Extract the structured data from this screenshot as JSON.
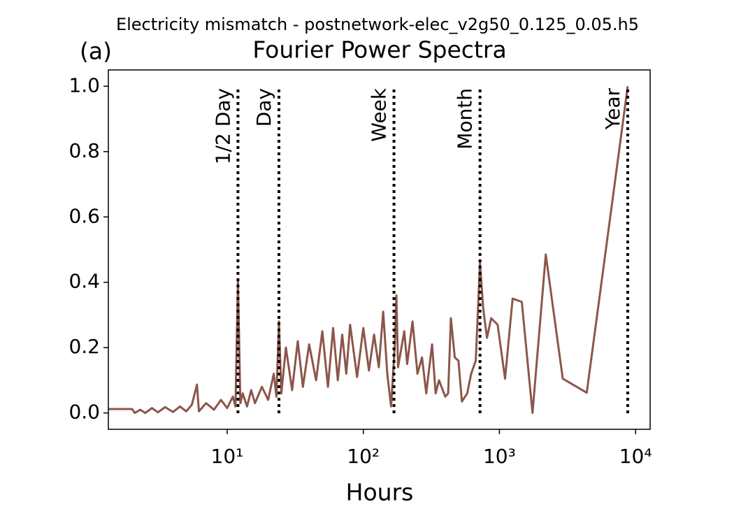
{
  "chart_data": {
    "type": "line",
    "title": "Electricity mismatch - postnetwork-elec_v2g50_0.125_0.05.h5",
    "subtitle": "Fourier Power Spectra",
    "panel_label": "(a)",
    "x_label": "Hours",
    "x_scale": "log",
    "color": "#8c564b",
    "xlim": [
      1.34,
      12800
    ],
    "ylim": [
      -0.05,
      1.05
    ],
    "xticks": [
      {
        "value": 10,
        "label": "10¹"
      },
      {
        "value": 100,
        "label": "10²"
      },
      {
        "value": 1000,
        "label": "10³"
      },
      {
        "value": 10000,
        "label": "10⁴"
      }
    ],
    "yticks": [
      {
        "value": 0,
        "label": "0.0"
      },
      0.2,
      0.4,
      0.6,
      0.8,
      {
        "value": 1,
        "label": "1.0"
      }
    ],
    "vlines": [
      {
        "x": 12,
        "label": "1/2 Day"
      },
      {
        "x": 24,
        "label": "Day"
      },
      {
        "x": 168,
        "label": "Week"
      },
      {
        "x": 720,
        "label": "Month"
      },
      {
        "x": 8760,
        "label": "Year"
      }
    ],
    "x": [
      1.34,
      2.0,
      2.1,
      2.3,
      2.5,
      2.8,
      3.1,
      3.5,
      4,
      4.5,
      5,
      5.5,
      6,
      6.2,
      7,
      8,
      9,
      10,
      11,
      11.5,
      12,
      12.5,
      13,
      14,
      15,
      16,
      18,
      20,
      22,
      23,
      24,
      25,
      27,
      30,
      33,
      36,
      40,
      45,
      50,
      55,
      60,
      65,
      70,
      75,
      80,
      90,
      100,
      110,
      120,
      130,
      140,
      150,
      160,
      170,
      175,
      180,
      200,
      210,
      230,
      250,
      270,
      290,
      320,
      340,
      360,
      400,
      420,
      440,
      470,
      500,
      530,
      580,
      620,
      670,
      720,
      760,
      810,
      870,
      970,
      1100,
      1250,
      1460,
      1750,
      2190,
      2920,
      4380,
      8760
    ],
    "values": [
      0.012,
      0.012,
      0.0,
      0.01,
      0.0,
      0.015,
      0.002,
      0.018,
      0.003,
      0.02,
      0.005,
      0.025,
      0.087,
      0.005,
      0.03,
      0.01,
      0.04,
      0.015,
      0.05,
      0.02,
      0.405,
      0.03,
      0.06,
      0.02,
      0.07,
      0.03,
      0.08,
      0.04,
      0.12,
      0.05,
      0.28,
      0.06,
      0.2,
      0.07,
      0.22,
      0.08,
      0.21,
      0.1,
      0.25,
      0.08,
      0.26,
      0.1,
      0.24,
      0.12,
      0.27,
      0.11,
      0.26,
      0.13,
      0.24,
      0.14,
      0.31,
      0.12,
      0.02,
      0.2,
      0.36,
      0.14,
      0.25,
      0.15,
      0.28,
      0.12,
      0.17,
      0.06,
      0.21,
      0.06,
      0.1,
      0.05,
      0.06,
      0.29,
      0.17,
      0.16,
      0.035,
      0.06,
      0.12,
      0.16,
      0.46,
      0.32,
      0.23,
      0.29,
      0.27,
      0.105,
      0.35,
      0.34,
      0.0,
      0.485,
      0.105,
      0.062,
      1.0
    ]
  }
}
